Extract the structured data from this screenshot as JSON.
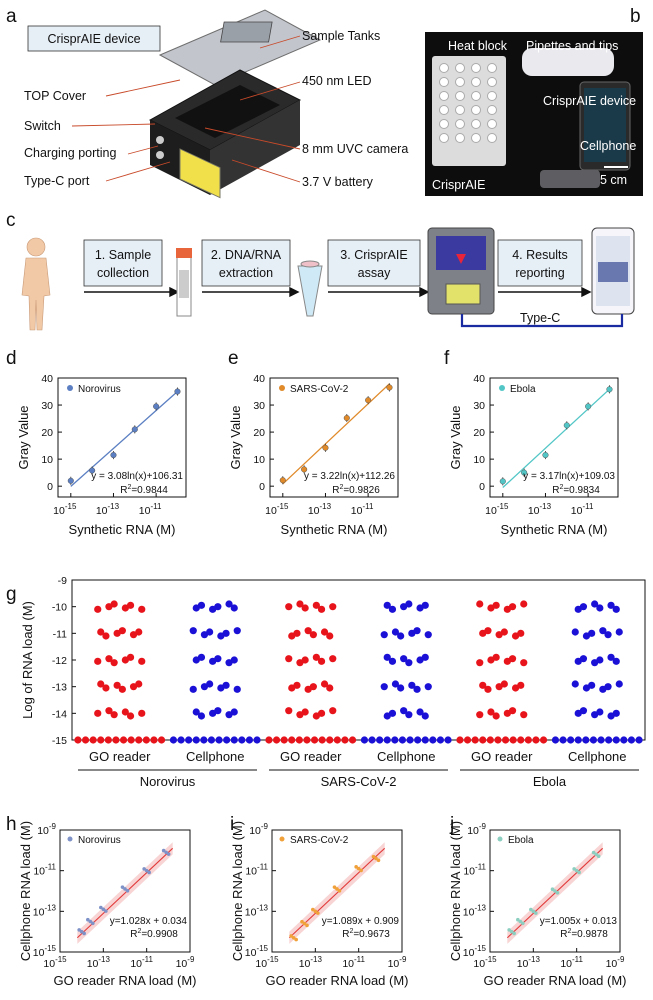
{
  "panels": {
    "a": {
      "letter": "a",
      "box_title": "CrisprAIE device",
      "labels_left": [
        "TOP Cover",
        "Switch",
        "Charging porting",
        "Type-C port"
      ],
      "labels_right": [
        "Sample Tanks",
        "450 nm LED",
        "8 mm UVC camera",
        "3.7 V battery"
      ]
    },
    "b": {
      "letter": "b",
      "labels": [
        "Heat block",
        "Pipettes and tips",
        "CrisprAIE device",
        "Cellphone",
        "CrisprAIE"
      ],
      "scale": "5 cm"
    },
    "c": {
      "letter": "c",
      "steps": [
        {
          "line1": "1. Sample",
          "line2": "collection"
        },
        {
          "line1": "2. DNA/RNA",
          "line2": "extraction"
        },
        {
          "line1": "3. CrisprAIE",
          "line2": "assay"
        },
        {
          "line1": "4. Results",
          "line2": "reporting"
        }
      ],
      "connector": "Type-C"
    },
    "g": {
      "letter": "g",
      "ylabel": "Log of RNA load (M)",
      "yticks": [
        "-9",
        "-10",
        "-11",
        "-12",
        "-13",
        "-14",
        "-15"
      ],
      "columns": [
        "GO reader",
        "Cellphone",
        "GO reader",
        "Cellphone",
        "GO reader",
        "Cellphone"
      ],
      "groups": [
        "Norovirus",
        "SARS-CoV-2",
        "Ebola"
      ],
      "colors": [
        "#e8141b",
        "#1a10d6"
      ]
    }
  },
  "chart_data": [
    {
      "id": "d",
      "type": "scatter",
      "letter": "d",
      "legend": "Norovirus",
      "color": "#5b7fc2",
      "xlabel": "Synthetic RNA (M)",
      "ylabel": "Gray Value",
      "xticks": [
        "10-15",
        "10-13",
        "10-11"
      ],
      "yticks": [
        "0",
        "10",
        "20",
        "30",
        "40"
      ],
      "x_log": [
        -15,
        -14,
        -13,
        -12,
        -11,
        -10
      ],
      "y": [
        2,
        5.8,
        11.5,
        21,
        29.5,
        35
      ],
      "equation": "y = 3.08ln(x)+106.31",
      "r2": "R2=0.9844"
    },
    {
      "id": "e",
      "type": "scatter",
      "letter": "e",
      "legend": "SARS-CoV-2",
      "color": "#e08a2a",
      "xlabel": "Synthetic RNA (M)",
      "ylabel": "Gray Value",
      "xticks": [
        "10-15",
        "10-13",
        "10-11"
      ],
      "yticks": [
        "0",
        "10",
        "20",
        "30",
        "40"
      ],
      "x_log": [
        -15,
        -14,
        -13,
        -12,
        -11,
        -10
      ],
      "y": [
        2.2,
        6.2,
        14.2,
        25.2,
        31.8,
        36.5
      ],
      "equation": "y = 3.22ln(x)+112.26",
      "r2": "R2=0.9826"
    },
    {
      "id": "f",
      "type": "scatter",
      "letter": "f",
      "legend": "Ebola",
      "color": "#52c6c6",
      "xlabel": "Synthetic RNA (M)",
      "ylabel": "Gray Value",
      "xticks": [
        "10-15",
        "10-13",
        "10-11"
      ],
      "yticks": [
        "0",
        "10",
        "20",
        "30",
        "40"
      ],
      "x_log": [
        -15,
        -14,
        -13,
        -12,
        -11,
        -10
      ],
      "y": [
        1.8,
        5,
        11.5,
        22.5,
        29.5,
        35.8
      ],
      "equation": "y = 3.17ln(x)+109.03",
      "r2": "R2=0.9834"
    },
    {
      "id": "h",
      "type": "scatter",
      "letter": "h",
      "legend": "Norovirus",
      "color": "#7f92c8",
      "xlabel": "GO reader RNA load (M)",
      "ylabel": "Cellphone RNA load (M)",
      "xticks": [
        "10-15",
        "10-13",
        "10-11",
        "10-9"
      ],
      "yticks": [
        "10-9",
        "10-11",
        "10-13",
        "10-15"
      ],
      "x_log": [
        -14,
        -13.6,
        -13,
        -12,
        -11,
        -10.1
      ],
      "y_log": [
        -14,
        -13.5,
        -12.9,
        -11.9,
        -11,
        -10.1
      ],
      "equation": "y=1.028x + 0.034",
      "r2": "R2=0.9908"
    },
    {
      "id": "i",
      "type": "scatter",
      "letter": "i",
      "legend": "SARS-CoV-2",
      "color": "#f0a13a",
      "xlabel": "GO reader RNA load (M)",
      "ylabel": "Cellphone RNA load (M)",
      "xticks": [
        "10-15",
        "10-13",
        "10-11",
        "10-9"
      ],
      "yticks": [
        "10-9",
        "10-11",
        "10-13",
        "10-15"
      ],
      "x_log": [
        -14,
        -13.5,
        -13,
        -12,
        -11,
        -10.2
      ],
      "y_log": [
        -14.3,
        -13.6,
        -13,
        -11.9,
        -10.9,
        -10.4
      ],
      "equation": "y=1.089x + 0.909",
      "r2": "R2=0.9673"
    },
    {
      "id": "j",
      "type": "scatter",
      "letter": "j",
      "legend": "Ebola",
      "color": "#8ccfc0",
      "xlabel": "GO reader RNA load (M)",
      "ylabel": "Cellphone RNA load (M)",
      "xticks": [
        "10-15",
        "10-13",
        "10-11",
        "10-9"
      ],
      "yticks": [
        "10-9",
        "10-11",
        "10-13",
        "10-15"
      ],
      "x_log": [
        -14,
        -13.6,
        -13,
        -12,
        -11,
        -10.1
      ],
      "y_log": [
        -14,
        -13.5,
        -13,
        -12,
        -11,
        -10.2
      ],
      "equation": "y=1.005x + 0.013",
      "r2": "R2=0.9878"
    }
  ]
}
